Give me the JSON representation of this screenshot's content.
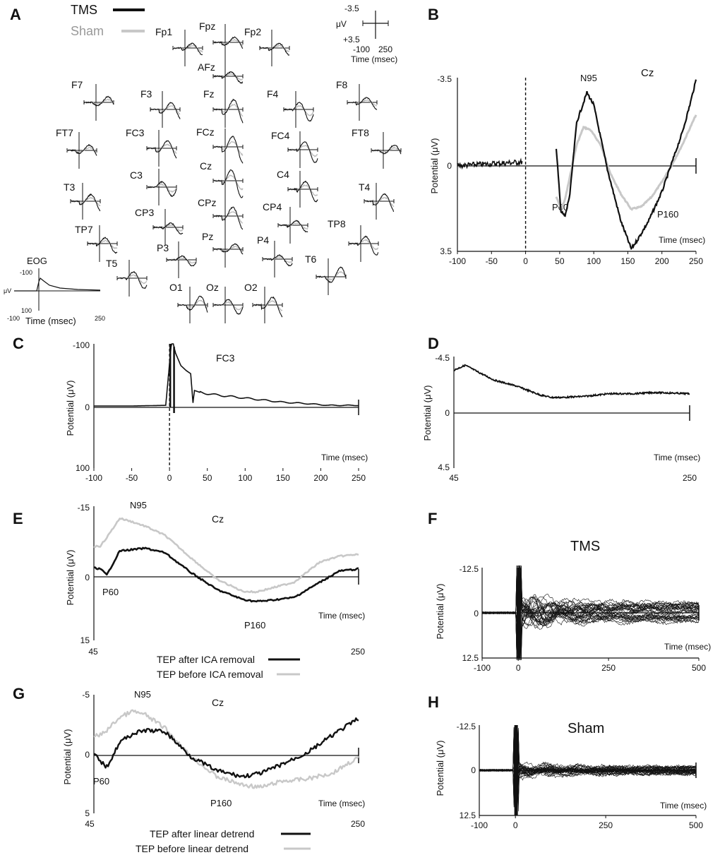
{
  "colors": {
    "tms": "#111111",
    "sham": "#c8c8c8",
    "axis": "#111111"
  },
  "legend": {
    "tms": "TMS",
    "sham": "Sham"
  },
  "panels": {
    "A": {
      "letter": "A",
      "scale": {
        "top": "-3.5",
        "bottom": "+3.5",
        "unit": "μV",
        "left": "-100",
        "right": "250",
        "time": "Time (msec)"
      },
      "electrodes": [
        "Fp1",
        "Fpz",
        "Fp2",
        "AFz",
        "F7",
        "F3",
        "Fz",
        "F4",
        "F8",
        "FT7",
        "FC3",
        "FCz",
        "FC4",
        "FT8",
        "C3",
        "Cz",
        "C4",
        "T3",
        "T4",
        "CP3",
        "CPz",
        "CP4",
        "TP7",
        "TP8",
        "P3",
        "Pz",
        "P4",
        "T5",
        "T6",
        "O1",
        "Oz",
        "O2"
      ],
      "eog": {
        "title": "EOG",
        "top": "-100",
        "bottom": "100",
        "unit": "μV",
        "left": "-100",
        "right": "250",
        "xlabel": "Time (msec)"
      }
    },
    "B": {
      "letter": "B",
      "channel": "Cz",
      "ylabel": "Potential (μV)",
      "xlabel": "Time (msec)",
      "y_top": "-3.5",
      "y_zero": "0",
      "y_bottom": "3.5",
      "xticks": [
        "-100",
        "-50",
        "0",
        "50",
        "100",
        "150",
        "200",
        "250"
      ],
      "labels": {
        "n95": "N95",
        "p60": "P60",
        "p160": "P160"
      }
    },
    "C": {
      "letter": "C",
      "channel": "FC3",
      "ylabel": "Potential (μV)",
      "xlabel": "Time (msec)",
      "y_top": "-100",
      "y_zero": "0",
      "y_bottom": "100",
      "xticks": [
        "-100",
        "-50",
        "0",
        "50",
        "100",
        "150",
        "200",
        "250"
      ]
    },
    "D": {
      "letter": "D",
      "ylabel": "Potential (μV)",
      "xlabel": "Time (msec)",
      "y_top": "-4.5",
      "y_zero": "0",
      "y_bottom": "4.5",
      "x_left": "45",
      "x_right": "250"
    },
    "E": {
      "letter": "E",
      "channel": "Cz",
      "ylabel": "Potential (μV)",
      "xlabel": "Time (msec)",
      "y_top": "-15",
      "y_zero": "0",
      "y_bottom": "15",
      "x_left": "45",
      "x_right": "250",
      "labels": {
        "n95": "N95",
        "p60": "P60",
        "p160": "P160"
      },
      "legend": {
        "after": "TEP after ICA removal",
        "before": "TEP before ICA removal"
      }
    },
    "F": {
      "letter": "F",
      "title": "TMS",
      "ylabel": "Potential (μV)",
      "xlabel": "Time (msec)",
      "y_top": "-12.5",
      "y_zero": "0",
      "y_bottom": "12.5",
      "xticks": [
        "-100",
        "0",
        "250",
        "500"
      ]
    },
    "G": {
      "letter": "G",
      "channel": "Cz",
      "ylabel": "Potential (μV)",
      "xlabel": "Time (msec)",
      "y_top": "-5",
      "y_zero": "0",
      "y_bottom": "5",
      "x_left": "45",
      "x_right": "250",
      "labels": {
        "n95": "N95",
        "p60": "P60",
        "p160": "P160"
      },
      "legend": {
        "after": "TEP after linear detrend",
        "before": "TEP before linear detrend"
      }
    },
    "H": {
      "letter": "H",
      "title": "Sham",
      "ylabel": "Potential (μV)",
      "xlabel": "Time (msec)",
      "y_top": "-12.5",
      "y_zero": "0",
      "y_bottom": "12.5",
      "xticks": [
        "-100",
        "0",
        "250",
        "500"
      ]
    }
  },
  "chart_data": [
    {
      "panel": "B",
      "type": "line",
      "title": "Cz",
      "xlabel": "Time (msec)",
      "ylabel": "Potential (μV)",
      "xlim": [
        -100,
        250
      ],
      "ylim": [
        -3.5,
        3.5
      ],
      "y_inverted": true,
      "series": [
        {
          "name": "TMS",
          "color": "#111111",
          "x": [
            -100,
            -50,
            -5,
            45,
            52,
            58,
            65,
            75,
            85,
            90,
            100,
            120,
            140,
            155,
            165,
            180,
            200,
            215,
            230,
            240,
            250
          ],
          "y": [
            0.05,
            0.0,
            -0.1,
            -0.6,
            1.9,
            2.1,
            1.2,
            -1.7,
            -2.5,
            -2.9,
            -2.4,
            0.2,
            2.3,
            3.4,
            3.0,
            2.3,
            1.1,
            -0.1,
            -1.3,
            -2.3,
            -3.4
          ]
        },
        {
          "name": "Sham",
          "color": "#c8c8c8",
          "x": [
            45,
            52,
            58,
            65,
            75,
            85,
            95,
            110,
            125,
            140,
            155,
            170,
            185,
            200,
            215,
            230,
            240,
            250
          ],
          "y": [
            1.3,
            1.8,
            1.4,
            0.5,
            -0.8,
            -1.5,
            -1.4,
            -0.8,
            0.4,
            1.2,
            1.8,
            1.7,
            1.3,
            0.7,
            0.0,
            -0.8,
            -1.4,
            -2.0
          ]
        }
      ],
      "annotations": [
        "N95",
        "P60",
        "P160"
      ]
    },
    {
      "panel": "C",
      "type": "line",
      "title": "FC3",
      "xlabel": "Time (msec)",
      "ylabel": "Potential (μV)",
      "xlim": [
        -100,
        250
      ],
      "ylim": [
        -100,
        100
      ],
      "y_inverted": true,
      "series": [
        {
          "name": "TMS",
          "color": "#111111",
          "x": [
            -100,
            -50,
            -5,
            2,
            3,
            5,
            8,
            15,
            22,
            28,
            31,
            33,
            40,
            60,
            90,
            120,
            150,
            180,
            210,
            240,
            250
          ],
          "y": [
            0,
            0,
            -1,
            -95,
            -100,
            -100,
            -85,
            -65,
            -57,
            -52,
            -5,
            -25,
            -22,
            -18,
            -14,
            -10,
            -6,
            -4,
            -1,
            -1,
            -1
          ]
        }
      ]
    },
    {
      "panel": "D",
      "type": "line",
      "xlabel": "Time (msec)",
      "ylabel": "Potential (μV)",
      "xlim": [
        45,
        250
      ],
      "ylim": [
        -4.5,
        4.5
      ],
      "y_inverted": true,
      "series": [
        {
          "name": "TMS",
          "color": "#111111",
          "x": [
            45,
            55,
            65,
            80,
            100,
            120,
            130,
            140,
            160,
            180,
            200,
            220,
            250
          ],
          "y": [
            -3.4,
            -3.8,
            -3.3,
            -2.6,
            -2.1,
            -1.4,
            -1.2,
            -1.2,
            -1.3,
            -1.5,
            -1.5,
            -1.6,
            -1.5
          ]
        }
      ]
    },
    {
      "panel": "E",
      "type": "line",
      "title": "Cz",
      "xlabel": "Time (msec)",
      "ylabel": "Potential (μV)",
      "xlim": [
        45,
        250
      ],
      "ylim": [
        -15,
        15
      ],
      "y_inverted": true,
      "series": [
        {
          "name": "TEP after ICA removal",
          "color": "#111111",
          "x": [
            45,
            50,
            55,
            65,
            75,
            85,
            100,
            120,
            140,
            160,
            170,
            180,
            200,
            220,
            235,
            245,
            250
          ],
          "y": [
            -1.2,
            -1.0,
            0.4,
            -5.0,
            -5.3,
            -5.6,
            -4.6,
            -0.2,
            3.6,
            5.8,
            6.3,
            6.1,
            5.4,
            2.0,
            -0.5,
            -0.8,
            -1.0
          ]
        },
        {
          "name": "TEP before ICA removal",
          "color": "#c8c8c8",
          "x": [
            45,
            50,
            55,
            65,
            75,
            85,
            100,
            120,
            140,
            160,
            170,
            180,
            200,
            220,
            235,
            245,
            250
          ],
          "y": [
            -6.0,
            -6.1,
            -8.0,
            -12.3,
            -11.5,
            -10.5,
            -8.5,
            -3.5,
            1.3,
            4.0,
            4.2,
            3.5,
            2.0,
            -2.5,
            -3.8,
            -4.1,
            -4.2
          ]
        }
      ],
      "annotations": [
        "N95",
        "P60",
        "P160"
      ]
    },
    {
      "panel": "F",
      "type": "line",
      "title": "TMS",
      "xlabel": "Time (msec)",
      "ylabel": "Potential (μV)",
      "xlim": [
        -100,
        500
      ],
      "ylim": [
        -12.5,
        12.5
      ],
      "y_inverted": true,
      "series_count": 32
    },
    {
      "panel": "G",
      "type": "line",
      "title": "Cz",
      "xlabel": "Time (msec)",
      "ylabel": "Potential (μV)",
      "xlim": [
        45,
        250
      ],
      "ylim": [
        -5,
        5
      ],
      "y_inverted": true,
      "series": [
        {
          "name": "TEP after linear detrend",
          "color": "#111111",
          "x": [
            45,
            50,
            55,
            65,
            75,
            85,
            100,
            120,
            140,
            160,
            175,
            190,
            210,
            230,
            240,
            250
          ],
          "y": [
            0.0,
            0.6,
            1.1,
            -1.0,
            -1.7,
            -2.0,
            -1.9,
            0.2,
            1.4,
            1.9,
            1.6,
            0.9,
            -0.1,
            -1.6,
            -2.3,
            -3.0
          ]
        },
        {
          "name": "TEP before linear detrend",
          "color": "#c8c8c8",
          "x": [
            45,
            50,
            55,
            65,
            75,
            85,
            100,
            120,
            140,
            160,
            175,
            190,
            210,
            230,
            240,
            250
          ],
          "y": [
            -1.5,
            -1.6,
            -2.0,
            -3.1,
            -3.6,
            -3.3,
            -2.2,
            0.2,
            1.9,
            2.6,
            2.8,
            2.3,
            2.1,
            1.6,
            0.9,
            0.3
          ]
        }
      ],
      "annotations": [
        "N95",
        "P60",
        "P160"
      ]
    },
    {
      "panel": "H",
      "type": "line",
      "title": "Sham",
      "xlabel": "Time (msec)",
      "ylabel": "Potential (μV)",
      "xlim": [
        -100,
        500
      ],
      "ylim": [
        -12.5,
        12.5
      ],
      "y_inverted": true,
      "series_count": 32
    }
  ]
}
